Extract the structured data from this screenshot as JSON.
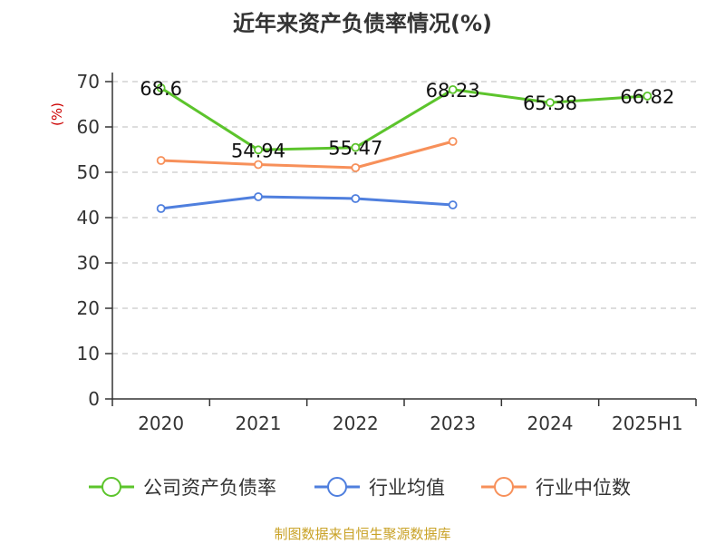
{
  "chart_data": {
    "type": "line",
    "title": "近年来资产负债率情况(%)",
    "ylabel": "(%)",
    "xlabel": "",
    "categories": [
      "2020",
      "2021",
      "2022",
      "2023",
      "2024",
      "2025H1"
    ],
    "ylim": [
      0,
      70
    ],
    "yticks": [
      0,
      10,
      20,
      30,
      40,
      50,
      60,
      70
    ],
    "grid": true,
    "legend_position": "bottom",
    "series": [
      {
        "name": "公司资产负债率",
        "color": "#5cc42c",
        "values": [
          68.6,
          54.94,
          55.47,
          68.23,
          65.38,
          66.82
        ],
        "labels": [
          "68.6",
          "54.94",
          "55.47",
          "68.23",
          "65.38",
          "66.82"
        ],
        "show_labels": true
      },
      {
        "name": "行业均值",
        "color": "#4f7fde",
        "values": [
          42.0,
          44.6,
          44.2,
          42.8,
          null,
          null
        ],
        "show_labels": false
      },
      {
        "name": "行业中位数",
        "color": "#f7905a",
        "values": [
          52.6,
          51.7,
          51.0,
          56.8,
          null,
          null
        ],
        "show_labels": false
      }
    ]
  },
  "footer": {
    "source": "制图数据来自恒生聚源数据库"
  }
}
